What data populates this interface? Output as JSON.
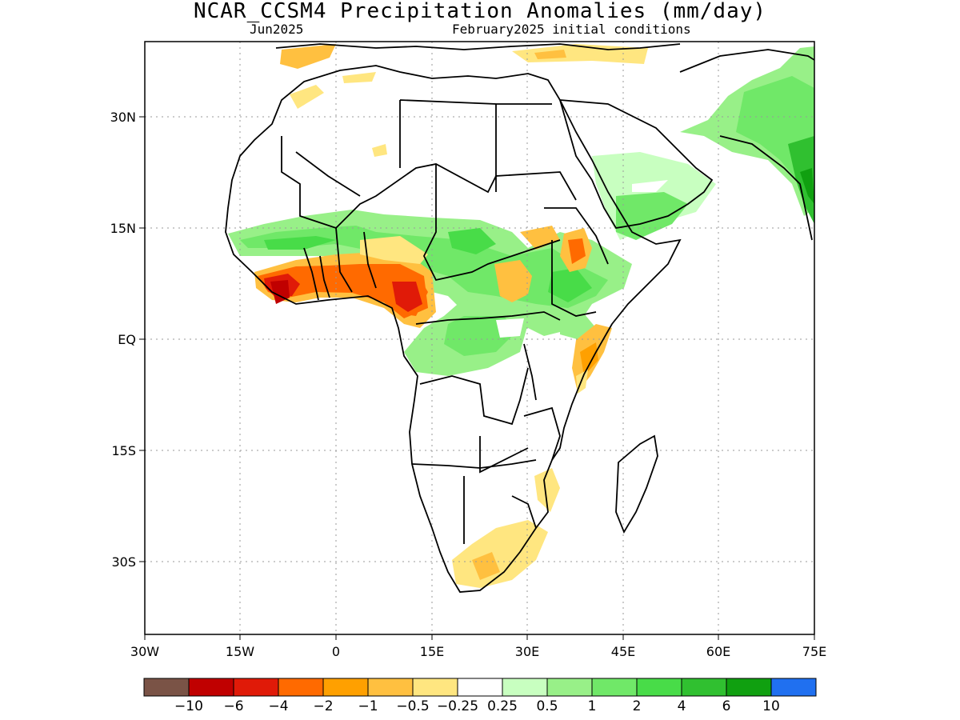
{
  "title": "NCAR_CCSM4 Precipitation Anomalies (mm/day)",
  "subtitle_left": "Jun2025",
  "subtitle_right": "February2025 initial conditions",
  "lon_ticks": [
    "30W",
    "15W",
    "0",
    "15E",
    "30E",
    "45E",
    "60E",
    "75E"
  ],
  "lat_ticks": [
    "30N",
    "15N",
    "EQ",
    "15S",
    "30S"
  ],
  "colorbar": {
    "colors": [
      "#7a5346",
      "#c00000",
      "#e01a08",
      "#ff6a00",
      "#ffa000",
      "#ffc040",
      "#ffe680",
      "#ffffff",
      "#c8ffc0",
      "#98f088",
      "#70e868",
      "#48dc48",
      "#30c030",
      "#10a010",
      "#2070f0"
    ],
    "labels": [
      "-10",
      "-6",
      "-4",
      "-2",
      "-1",
      "-0.5",
      "-0.25",
      "0.25",
      "0.5",
      "1",
      "2",
      "4",
      "6",
      "10"
    ]
  }
}
